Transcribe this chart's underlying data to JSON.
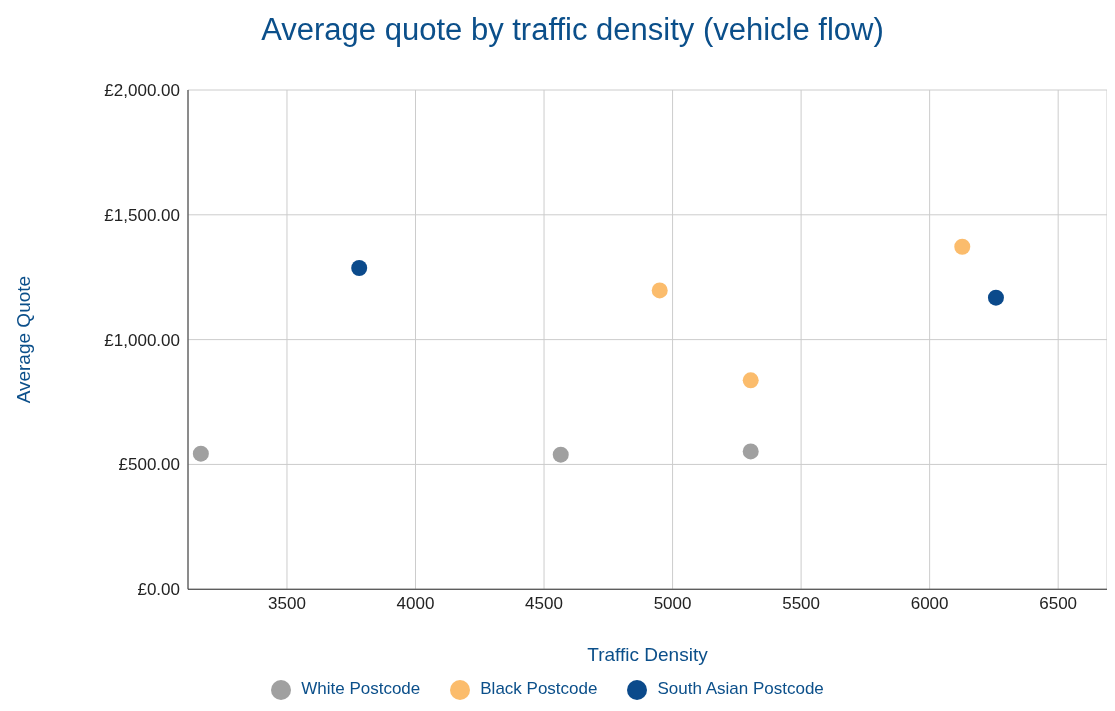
{
  "chart_data": {
    "type": "scatter",
    "title": "Average quote by traffic density (vehicle flow)",
    "xlabel": "Traffic Density",
    "ylabel": "Average Quote",
    "series": [
      {
        "name": "White Postcode",
        "color": "#a0a0a0",
        "x": [
          3165,
          4565,
          5304
        ],
        "values": [
          543,
          539,
          552
        ]
      },
      {
        "name": "Black Postcode",
        "color": "#fbbc6c",
        "x": [
          4950,
          5304,
          6127
        ],
        "values": [
          1197,
          837,
          1372
        ]
      },
      {
        "name": "South Asian Postcode",
        "color": "#0b4a8b",
        "x": [
          3781,
          6258
        ],
        "values": [
          1287,
          1168
        ]
      }
    ],
    "xlim": [
      3115,
      6690
    ],
    "xticks": [
      3500,
      4000,
      4500,
      5000,
      5500,
      6000,
      6500
    ],
    "ylim": [
      0,
      2000
    ],
    "yticks": [
      {
        "value": 0,
        "label": "£0.00"
      },
      {
        "value": 500,
        "label": "£500.00"
      },
      {
        "value": 1000,
        "label": "£1,000.00"
      },
      {
        "value": 1500,
        "label": "£1,500.00"
      },
      {
        "value": 2000,
        "label": "£2,000.00"
      }
    ],
    "grid": true,
    "legend": "bottom",
    "marker": "circle"
  }
}
